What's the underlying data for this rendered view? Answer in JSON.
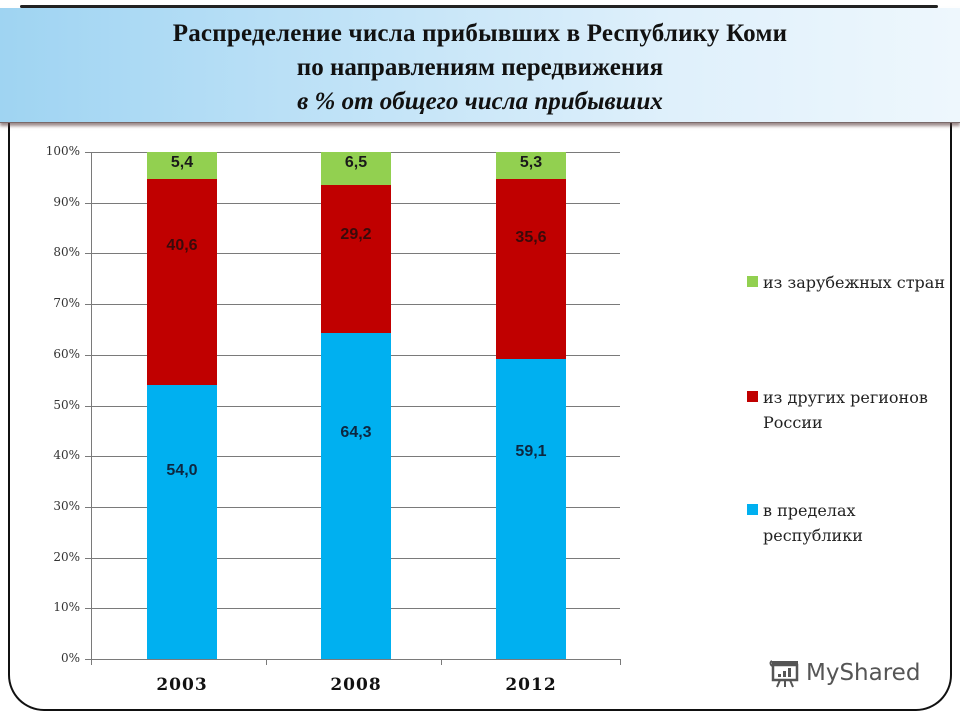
{
  "title": {
    "line1": "Распределение числа прибывших в  Республику Коми",
    "line2": "по направлениям передвижения",
    "line3": "в % от общего числа прибывших"
  },
  "colors": {
    "foreign": "#92d050",
    "other_regions": "#c00000",
    "within_republic": "#00b0f0",
    "banner_start": "#9fd4f2",
    "banner_end": "#eef7fd"
  },
  "watermark": {
    "text": "MyShared",
    "icon": "presentation-chart-icon"
  },
  "chart_data": {
    "type": "bar",
    "stacked": true,
    "percent_stacked": true,
    "title": "Распределение числа прибывших в Республику Коми по направлениям передвижения, в % от общего числа прибывших",
    "xlabel": "",
    "ylabel": "",
    "categories": [
      "2003",
      "2008",
      "2012"
    ],
    "series": [
      {
        "name": "в пределах республики",
        "color": "#00b0f0",
        "values": [
          54.0,
          64.3,
          59.1
        ],
        "labels": [
          "54,0",
          "64,3",
          "59,1"
        ]
      },
      {
        "name": "из других регионов России",
        "color": "#c00000",
        "values": [
          40.6,
          29.2,
          35.6
        ],
        "labels": [
          "40,6",
          "29,2",
          "35,6"
        ]
      },
      {
        "name": "из зарубежных стран",
        "color": "#92d050",
        "values": [
          5.4,
          6.5,
          5.3
        ],
        "labels": [
          "5,4",
          "6,5",
          "5,3"
        ]
      }
    ],
    "yticks": [
      "0%",
      "10%",
      "20%",
      "30%",
      "40%",
      "50%",
      "60%",
      "70%",
      "80%",
      "90%",
      "100%"
    ],
    "ylim": [
      0,
      100
    ],
    "grid": true,
    "legend_position": "right",
    "legend": [
      {
        "label": "из зарубежных стран",
        "color": "#92d050"
      },
      {
        "label": "из других регионов России",
        "color": "#c00000"
      },
      {
        "label": "в пределах республики",
        "color": "#00b0f0"
      }
    ]
  }
}
